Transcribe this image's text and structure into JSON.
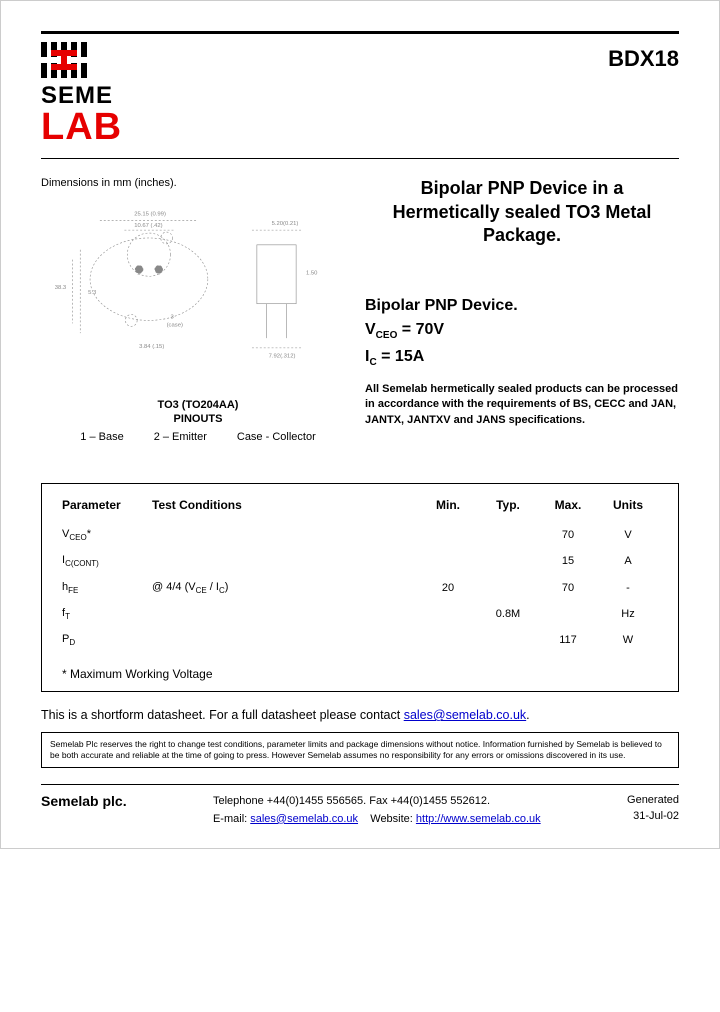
{
  "logo": {
    "line1": "SEME",
    "line2": "LAB",
    "line1_color": "#000000",
    "line2_color": "#e60000",
    "stripe_color_black": "#000000",
    "stripe_color_red": "#e60000"
  },
  "part_number": "BDX18",
  "dims_label": "Dimensions in mm (inches).",
  "title": "Bipolar PNP Device in a Hermetically sealed TO3 Metal Package.",
  "device_line": "Bipolar PNP Device.",
  "spec_vceo": {
    "label_html": "V",
    "sub": "CEO",
    "eq": " =  70V"
  },
  "spec_ic": {
    "label_html": "I",
    "sub": "C",
    "eq": " = 15A"
  },
  "spec_note": "All Semelab hermetically sealed products can be processed in accordance with the requirements of BS, CECC and JAN, JANTX, JANTXV and JANS specifications.",
  "pinouts": {
    "pkg": "TO3 (TO204AA)",
    "header": "PINOUTS",
    "items": [
      "1 – Base",
      "2 – Emitter",
      "Case - Collector"
    ]
  },
  "table": {
    "headers": [
      "Parameter",
      "Test Conditions",
      "Min.",
      "Typ.",
      "Max.",
      "Units"
    ],
    "rows": [
      {
        "param": "V",
        "param_sub": "CEO",
        "param_suffix": "*",
        "cond": "",
        "min": "",
        "typ": "",
        "max": "70",
        "units": "V"
      },
      {
        "param": "I",
        "param_sub": "C(CONT)",
        "param_suffix": "",
        "cond": "",
        "min": "",
        "typ": "",
        "max": "15",
        "units": "A"
      },
      {
        "param": "h",
        "param_sub": "FE",
        "param_suffix": "",
        "cond": "@ 4/4 (V",
        "cond_sub": "CE",
        "cond_mid": " / I",
        "cond_sub2": "C",
        "cond_end": ")",
        "min": "20",
        "typ": "",
        "max": "70",
        "units": "-"
      },
      {
        "param": "f",
        "param_sub": "T",
        "param_suffix": "",
        "cond": "",
        "min": "",
        "typ": "0.8M",
        "max": "",
        "units": "Hz"
      },
      {
        "param": "P",
        "param_sub": "D",
        "param_suffix": "",
        "cond": "",
        "min": "",
        "typ": "",
        "max": "117",
        "units": "W"
      }
    ],
    "footnote": "* Maximum Working Voltage"
  },
  "shortform": {
    "text": "This is a shortform datasheet. For a full datasheet please contact ",
    "email": "sales@semelab.co.uk",
    "suffix": "."
  },
  "legal": "Semelab Plc reserves the right to change test conditions, parameter limits and package dimensions without notice. Information furnished by Semelab is believed to be both accurate and reliable at the time of going to press. However Semelab assumes no responsibility for any errors or omissions discovered in its use.",
  "footer": {
    "company": "Semelab plc.",
    "phone": "Telephone +44(0)1455 556565. Fax +44(0)1455 552612.",
    "email_label": "E-mail: ",
    "email": "sales@semelab.co.uk",
    "website_label": "    Website: ",
    "website": "http://www.semelab.co.uk",
    "generated": "Generated",
    "date": "31-Jul-02"
  },
  "colors": {
    "text": "#000000",
    "link": "#0000cc",
    "border": "#000000"
  }
}
